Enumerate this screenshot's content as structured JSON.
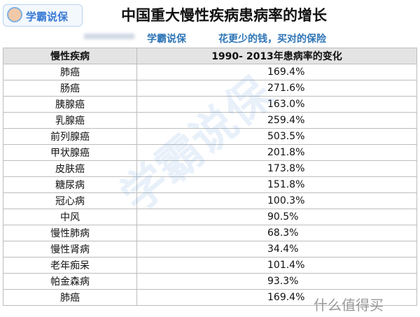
{
  "header": {
    "logo": "学霸说保",
    "title": "中国重大慢性疾病患病率的增长"
  },
  "subheader": {
    "brand": "学霸说保",
    "slogan": "花更少的钱，买对的保险"
  },
  "table": {
    "columns": [
      "慢性疾病",
      "1990- 2013年患病率的变化"
    ],
    "rows": [
      [
        "肺癌",
        "169.4%"
      ],
      [
        "肠癌",
        "271.6%"
      ],
      [
        "胰腺癌",
        "163.0%"
      ],
      [
        "乳腺癌",
        "259.4%"
      ],
      [
        "前列腺癌",
        "503.5%"
      ],
      [
        "甲状腺癌",
        "201.8%"
      ],
      [
        "皮肤癌",
        "173.8%"
      ],
      [
        "糖尿病",
        "151.8%"
      ],
      [
        "冠心病",
        "100.3%"
      ],
      [
        "中风",
        "90.5%"
      ],
      [
        "慢性肺病",
        "68.3%"
      ],
      [
        "慢性肾病",
        "34.4%"
      ],
      [
        "老年痴呆",
        "101.4%"
      ],
      [
        "帕金森病",
        "93.3%"
      ],
      [
        "肺癌",
        "169.4%"
      ]
    ]
  },
  "watermark": {
    "text": "学霸说保",
    "site": "什么值得买"
  }
}
